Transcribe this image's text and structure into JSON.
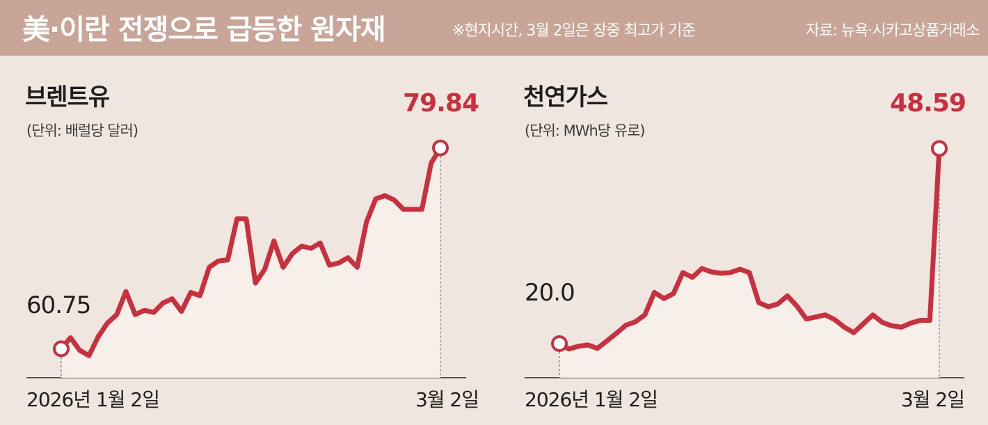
{
  "header": {
    "title": "美·이란 전쟁으로 급등한 원자재",
    "note": "※현지시간, 3월 2일은 장중 최고가 기준",
    "source": "자료: 뉴욕·시카고상품거래소"
  },
  "colors": {
    "header_bg": "#c8a596",
    "page_bg": "#efe6df",
    "line": "#c8303d",
    "area": "#f6efea"
  },
  "chart_data": [
    {
      "type": "line",
      "title": "브렌트유",
      "unit": "(단위: 배럴당 달러)",
      "x_start_label": "2026년 1월 2일",
      "x_end_label": "3월 2일",
      "start_label": "60.75",
      "end_label": "79.84",
      "ylim": [
        58,
        82
      ],
      "values": [
        60.75,
        61.8,
        60.6,
        60.1,
        61.9,
        63.2,
        64.0,
        66.2,
        64.0,
        64.4,
        64.2,
        65.1,
        65.5,
        64.3,
        66.1,
        65.8,
        68.5,
        69.1,
        69.2,
        73.1,
        73.1,
        67.0,
        68.3,
        71.0,
        68.5,
        69.8,
        70.5,
        70.3,
        70.8,
        68.7,
        68.9,
        69.4,
        68.5,
        72.8,
        75.0,
        75.3,
        74.9,
        74.0,
        74.0,
        74.0,
        78.4,
        79.84
      ]
    },
    {
      "type": "line",
      "title": "천연가스",
      "unit": "(단위: MWh당 유로)",
      "x_start_label": "2026년 1월 2일",
      "x_end_label": "3월 2일",
      "start_label": "20.0",
      "end_label": "48.59",
      "ylim": [
        15,
        52
      ],
      "values": [
        20.0,
        19.2,
        19.6,
        19.8,
        19.3,
        20.4,
        21.5,
        22.7,
        23.2,
        24.2,
        27.5,
        26.6,
        27.3,
        30.4,
        29.7,
        31.0,
        30.5,
        30.3,
        30.4,
        30.9,
        30.4,
        26.0,
        25.4,
        25.8,
        27.0,
        25.5,
        23.6,
        23.9,
        24.2,
        23.5,
        22.4,
        21.6,
        22.9,
        24.2,
        23.1,
        22.6,
        22.4,
        23.0,
        23.4,
        23.4,
        48.59
      ]
    }
  ]
}
